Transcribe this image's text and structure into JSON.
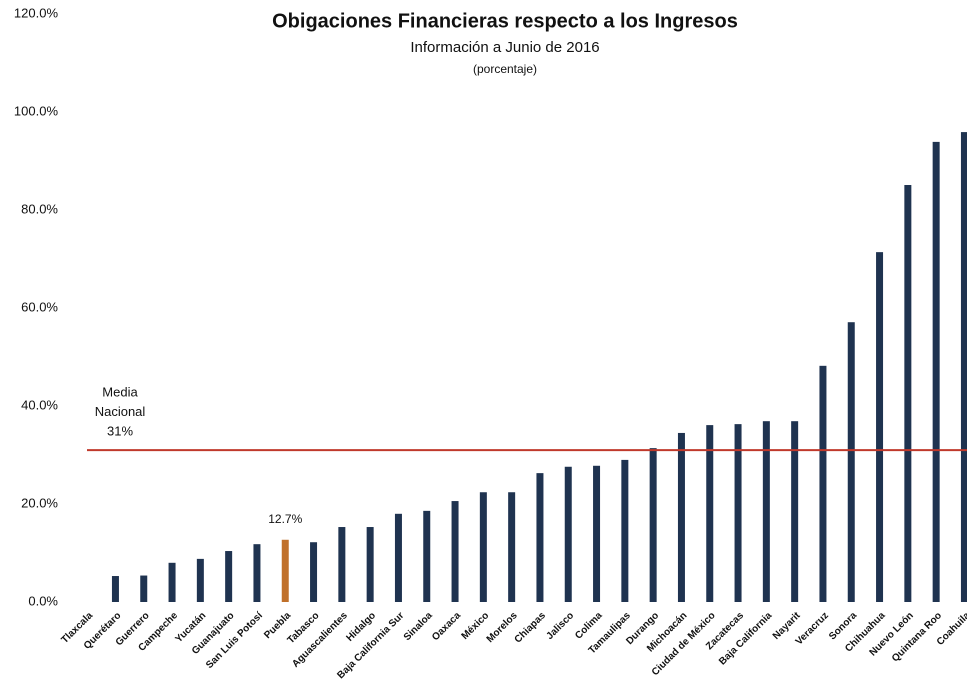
{
  "chart_data": {
    "type": "bar",
    "title": "Obigaciones Financieras respecto a los Ingresos",
    "subtitle": "Información a Junio de 2016",
    "unit_note": "(porcentaje)",
    "categories": [
      "Tlaxcala",
      "Querétaro",
      "Guerrero",
      "Campeche",
      "Yucatán",
      "Guanajuato",
      "San Luis Potosí",
      "Puebla",
      "Tabasco",
      "Aguascalientes",
      "Hidalgo",
      "Baja California Sur",
      "Sinaloa",
      "Oaxaca",
      "México",
      "Morelos",
      "Chiapas",
      "Jalisco",
      "Colima",
      "Tamaulipas",
      "Durango",
      "Michoacán",
      "Ciudad de México",
      "Zacatecas",
      "Baja California",
      "Nayarit",
      "Veracruz",
      "Sonora",
      "Chihuahua",
      "Nuevo León",
      "Quintana Roo",
      "Coahuila"
    ],
    "values": [
      0,
      5.3,
      5.4,
      8.0,
      8.8,
      10.4,
      11.8,
      12.7,
      12.2,
      15.3,
      15.3,
      18.0,
      18.6,
      20.6,
      22.4,
      22.4,
      26.3,
      27.6,
      27.8,
      29.0,
      31.4,
      34.5,
      36.1,
      36.3,
      36.9,
      36.9,
      48.2,
      57.1,
      71.4,
      85.1,
      93.9,
      95.9
    ],
    "color": "#1f3350",
    "highlight": {
      "index": 7,
      "label": "12.7%",
      "color": "#c0702a"
    },
    "mean": {
      "value": 31,
      "label": "31%",
      "title": [
        "Media",
        "Nacional"
      ],
      "color": "#c0392b"
    },
    "ylim": [
      0,
      120
    ],
    "yticks": [
      {
        "value": 0,
        "label": "0.0%"
      },
      {
        "value": 20,
        "label": "20.0%"
      },
      {
        "value": 40,
        "label": "40.0%"
      },
      {
        "value": 60,
        "label": "60.0%"
      },
      {
        "value": 80,
        "label": "80.0%"
      },
      {
        "value": 100,
        "label": "100.0%"
      },
      {
        "value": 120,
        "label": "120.0%"
      }
    ],
    "grid": false
  }
}
